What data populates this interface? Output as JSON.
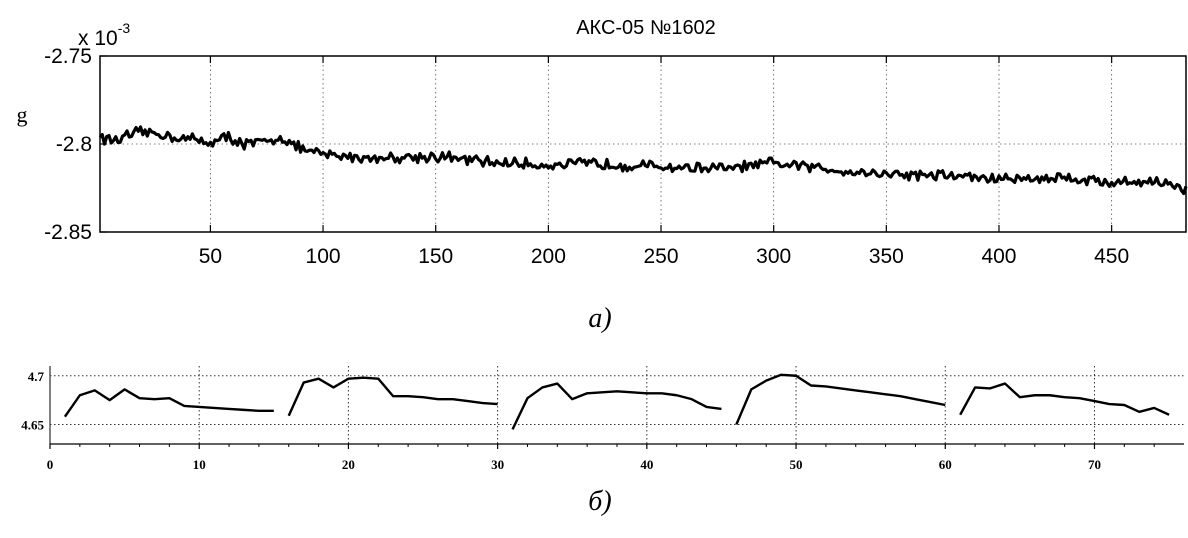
{
  "chart_data": [
    {
      "type": "line",
      "title": "АКС-05 №1602",
      "ylabel": "g",
      "y_multiplier": "x 10",
      "y_multiplier_exp": "-3",
      "caption": "а)",
      "xlim": [
        1,
        483
      ],
      "ylim": [
        -2.85,
        -2.75
      ],
      "xticks": [
        50,
        100,
        150,
        200,
        250,
        300,
        350,
        400,
        450
      ],
      "yticks": [
        -2.75,
        -2.8,
        -2.85
      ],
      "xtick_labels": [
        "50",
        "100",
        "150",
        "200",
        "250",
        "300",
        "350",
        "400",
        "450"
      ],
      "ytick_labels": [
        "-2.75",
        "-2.8",
        "-2.85"
      ],
      "grid": true,
      "series_approx": {
        "x": [
          1,
          5,
          10,
          20,
          30,
          40,
          50,
          58,
          65,
          75,
          82,
          90,
          100,
          120,
          150,
          170,
          200,
          220,
          250,
          280,
          300,
          330,
          350,
          380,
          400,
          430,
          450,
          470,
          483
        ],
        "y": [
          -2.795,
          -2.798,
          -2.797,
          -2.793,
          -2.795,
          -2.797,
          -2.799,
          -2.796,
          -2.8,
          -2.799,
          -2.796,
          -2.803,
          -2.806,
          -2.808,
          -2.807,
          -2.81,
          -2.812,
          -2.811,
          -2.813,
          -2.814,
          -2.811,
          -2.815,
          -2.817,
          -2.818,
          -2.82,
          -2.819,
          -2.822,
          -2.821,
          -2.826
        ]
      }
    },
    {
      "type": "line",
      "caption": "б)",
      "xlim": [
        0,
        76
      ],
      "ylim": [
        4.63,
        4.71
      ],
      "xticks": [
        0,
        10,
        20,
        30,
        40,
        50,
        60,
        70
      ],
      "xtick_labels": [
        "0",
        "10",
        "20",
        "30",
        "40",
        "50",
        "60",
        "70"
      ],
      "yticks": [
        4.7,
        4.65
      ],
      "ytick_labels": [
        "4.7",
        "4.65"
      ],
      "grid": true,
      "segments": [
        {
          "x": [
            1,
            2,
            3,
            4,
            5,
            6,
            7,
            8,
            9,
            10,
            11,
            12,
            13,
            14,
            15
          ],
          "y": [
            4.658,
            4.68,
            4.685,
            4.675,
            4.686,
            4.677,
            4.676,
            4.677,
            4.669,
            4.668,
            4.667,
            4.666,
            4.665,
            4.664,
            4.664
          ]
        },
        {
          "x": [
            16,
            17,
            18,
            19,
            20,
            21,
            22,
            23,
            24,
            25,
            26,
            27,
            28,
            29,
            30
          ],
          "y": [
            4.659,
            4.693,
            4.697,
            4.688,
            4.697,
            4.698,
            4.697,
            4.679,
            4.679,
            4.678,
            4.676,
            4.676,
            4.674,
            4.672,
            4.671
          ]
        },
        {
          "x": [
            31,
            32,
            33,
            34,
            35,
            36,
            37,
            38,
            39,
            40,
            41,
            42,
            43,
            44,
            45
          ],
          "y": [
            4.645,
            4.677,
            4.688,
            4.692,
            4.676,
            4.682,
            4.683,
            4.684,
            4.683,
            4.682,
            4.682,
            4.68,
            4.676,
            4.668,
            4.666
          ]
        },
        {
          "x": [
            46,
            47,
            48,
            49,
            50,
            51,
            52,
            53,
            54,
            55,
            56,
            57,
            58,
            59,
            60
          ],
          "y": [
            4.65,
            4.686,
            4.695,
            4.701,
            4.7,
            4.69,
            4.689,
            4.687,
            4.685,
            4.683,
            4.681,
            4.679,
            4.676,
            4.673,
            4.67
          ]
        },
        {
          "x": [
            61,
            62,
            63,
            64,
            65,
            66,
            67,
            68,
            69,
            70,
            71,
            72,
            73,
            74,
            75
          ],
          "y": [
            4.66,
            4.688,
            4.687,
            4.692,
            4.678,
            4.68,
            4.68,
            4.678,
            4.677,
            4.674,
            4.671,
            4.67,
            4.663,
            4.667,
            4.66
          ]
        }
      ]
    }
  ]
}
